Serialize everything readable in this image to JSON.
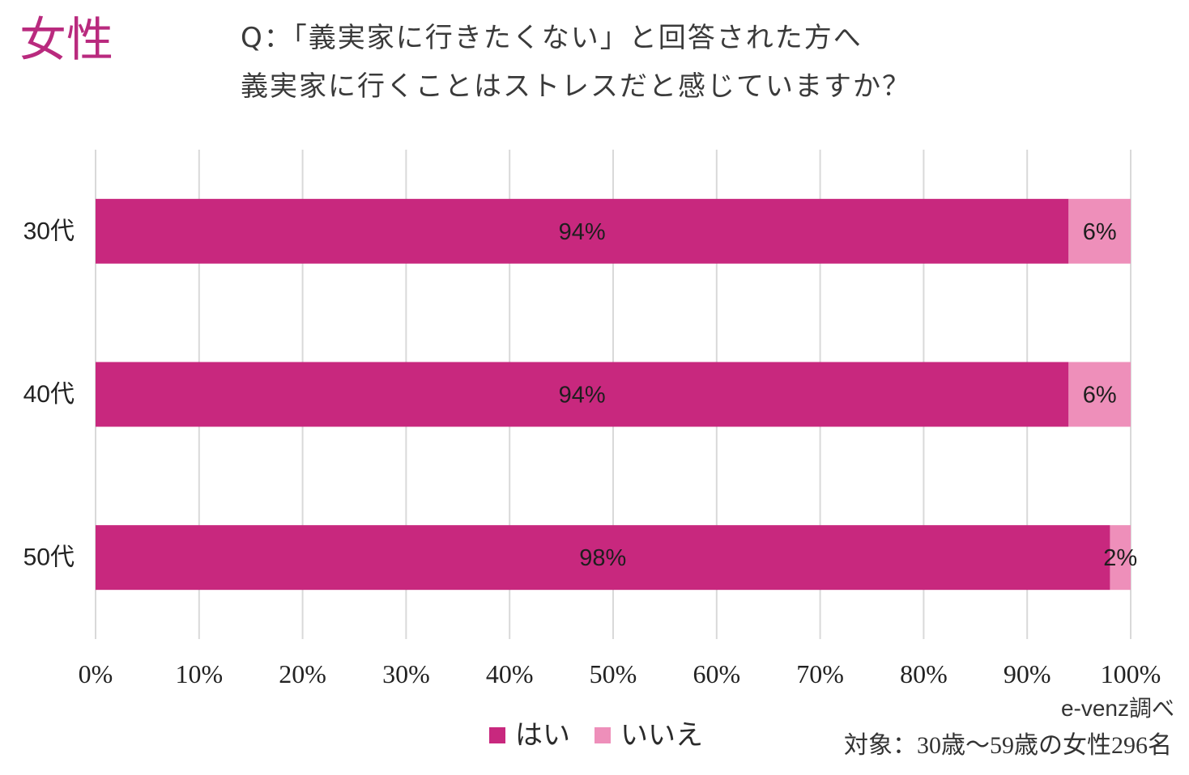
{
  "header": {
    "segment_label": "女性"
  },
  "chart_data": {
    "type": "bar",
    "orientation": "horizontal",
    "stacked": true,
    "title_lines": [
      "Q：「義実家に行きたくない」と回答された方へ",
      "義実家に行くことはストレスだと感じていますか？"
    ],
    "categories": [
      "30代",
      "40代",
      "50代"
    ],
    "series": [
      {
        "name": "はい",
        "color": "#C8287E",
        "values": [
          94,
          94,
          98
        ],
        "data_labels": [
          "94%",
          "94%",
          "98%"
        ]
      },
      {
        "name": "いいえ",
        "color": "#EE8FBA",
        "values": [
          6,
          6,
          2
        ],
        "data_labels": [
          "6%",
          "6%",
          "2%"
        ]
      }
    ],
    "xlim": [
      0,
      100
    ],
    "xticks": [
      0,
      10,
      20,
      30,
      40,
      50,
      60,
      70,
      80,
      90,
      100
    ],
    "x_tick_labels": [
      "0%",
      "10%",
      "20%",
      "30%",
      "40%",
      "50%",
      "60%",
      "70%",
      "80%",
      "90%",
      "100%"
    ],
    "grid": "vertical",
    "legend_position": "bottom"
  },
  "footer": {
    "source": "e-venz調べ",
    "sample": "対象：30歳〜59歳の女性296名"
  },
  "colors": {
    "accent": "#B92A7E",
    "gridline": "#D9D9D9"
  }
}
